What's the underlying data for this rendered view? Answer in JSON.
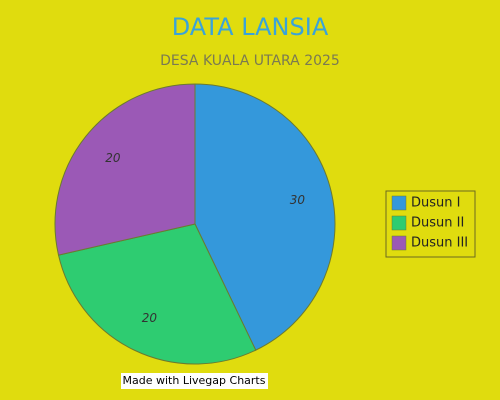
{
  "chart_data": {
    "type": "pie",
    "title": "DATA LANSIA",
    "subtitle": "DESA KUALA UTARA 2025",
    "categories": [
      "Dusun I",
      "Dusun II",
      "Dusun III"
    ],
    "values": [
      30,
      20,
      20
    ],
    "colors": [
      "#3498db",
      "#2ecc71",
      "#9b59b6"
    ],
    "legend": "right"
  },
  "watermark": "Made with Livegap Charts"
}
